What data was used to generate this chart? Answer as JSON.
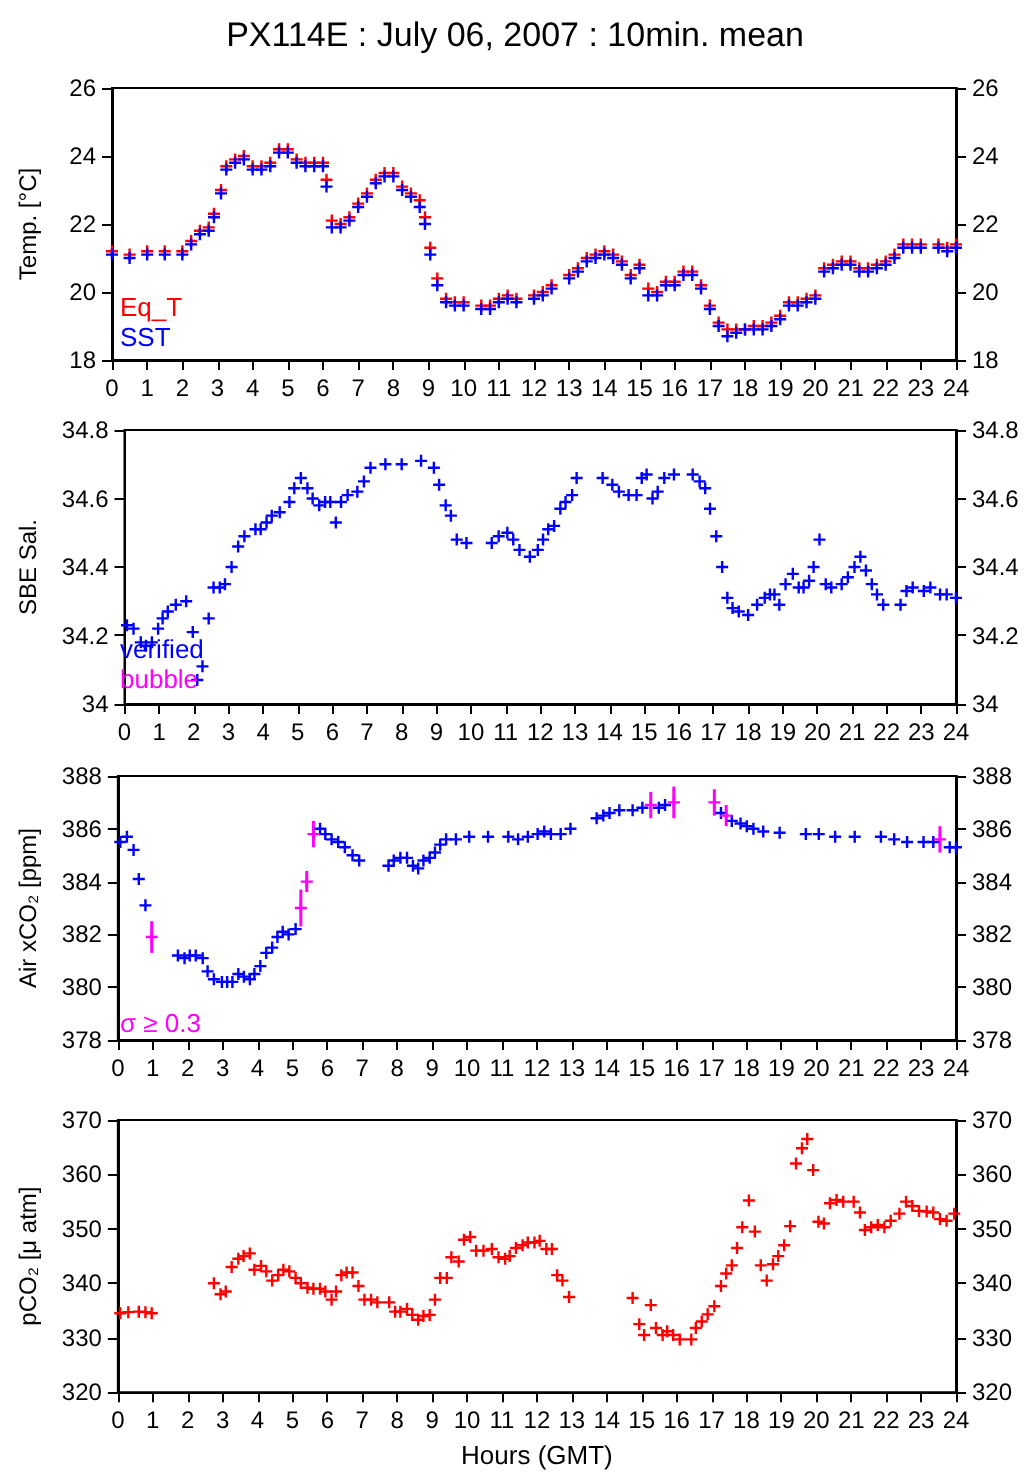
{
  "chart_data": [
    {
      "type": "scatter",
      "title": "PX114E : July 06, 2007 : 10min. mean",
      "ylabel": "Temp. [°C]",
      "xlim": [
        0,
        24
      ],
      "xticks": [
        0,
        1,
        2,
        3,
        4,
        5,
        6,
        7,
        8,
        9,
        10,
        11,
        12,
        13,
        14,
        15,
        16,
        17,
        18,
        19,
        20,
        21,
        22,
        23,
        24
      ],
      "ylim": [
        18,
        26
      ],
      "yticks": [
        18,
        20,
        22,
        24,
        26
      ],
      "y2lim": [
        18,
        26
      ],
      "y2ticks": [
        18,
        20,
        22,
        24,
        26
      ],
      "marker": "cross",
      "legend": "bottom left",
      "series": [
        {
          "name": "Eq_T",
          "color": "#ff0000",
          "x": [
            0,
            0.5,
            1,
            1.5,
            2,
            2.25,
            2.5,
            2.75,
            2.9,
            3.1,
            3.25,
            3.5,
            3.75,
            4,
            4.25,
            4.5,
            4.75,
            5,
            5.25,
            5.5,
            5.75,
            6,
            6.1,
            6.25,
            6.5,
            6.75,
            7,
            7.25,
            7.5,
            7.75,
            8,
            8.25,
            8.5,
            8.75,
            8.9,
            9.05,
            9.25,
            9.5,
            9.75,
            10,
            10.5,
            10.75,
            11,
            11.25,
            11.5,
            12,
            12.25,
            12.5,
            13,
            13.25,
            13.5,
            13.75,
            14,
            14.25,
            14.5,
            14.75,
            15,
            15.25,
            15.5,
            15.75,
            16,
            16.25,
            16.5,
            16.75,
            17,
            17.25,
            17.5,
            17.75,
            18,
            18.25,
            18.5,
            18.75,
            19,
            19.25,
            19.5,
            19.75,
            20,
            20.25,
            20.5,
            20.75,
            21,
            21.25,
            21.5,
            21.75,
            22,
            22.25,
            22.5,
            22.75,
            23,
            23.5,
            23.75,
            24
          ],
          "values": [
            21.2,
            21.1,
            21.2,
            21.2,
            21.2,
            21.5,
            21.8,
            21.9,
            22.3,
            23,
            23.7,
            23.9,
            24,
            23.7,
            23.7,
            23.8,
            24.2,
            24.2,
            23.9,
            23.8,
            23.8,
            23.8,
            23.3,
            22.1,
            22,
            22.2,
            22.6,
            22.9,
            23.3,
            23.5,
            23.5,
            23.1,
            22.9,
            22.7,
            22.2,
            21.3,
            20.4,
            19.8,
            19.7,
            19.7,
            19.6,
            19.6,
            19.8,
            19.9,
            19.8,
            19.9,
            20,
            20.2,
            20.5,
            20.7,
            21,
            21.1,
            21.2,
            21.1,
            20.9,
            20.5,
            20.8,
            20.1,
            20,
            20.3,
            20.3,
            20.6,
            20.6,
            20.2,
            19.6,
            19.1,
            18.9,
            18.9,
            18.9,
            19,
            19,
            19.1,
            19.3,
            19.7,
            19.7,
            19.8,
            19.9,
            20.7,
            20.8,
            20.9,
            20.9,
            20.7,
            20.7,
            20.8,
            20.9,
            21.1,
            21.4,
            21.4,
            21.4,
            21.4,
            21.3,
            21.4
          ]
        },
        {
          "name": "SST",
          "color": "#0000ff",
          "x": [
            0,
            0.5,
            1,
            1.5,
            2,
            2.25,
            2.5,
            2.75,
            2.9,
            3.1,
            3.25,
            3.5,
            3.75,
            4,
            4.25,
            4.5,
            4.75,
            5,
            5.25,
            5.5,
            5.75,
            6,
            6.1,
            6.25,
            6.5,
            6.75,
            7,
            7.25,
            7.5,
            7.75,
            8,
            8.25,
            8.5,
            8.75,
            8.9,
            9.05,
            9.25,
            9.5,
            9.75,
            10,
            10.5,
            10.75,
            11,
            11.25,
            11.5,
            12,
            12.25,
            12.5,
            13,
            13.25,
            13.5,
            13.75,
            14,
            14.25,
            14.5,
            14.75,
            15,
            15.25,
            15.5,
            15.75,
            16,
            16.25,
            16.5,
            16.75,
            17,
            17.25,
            17.5,
            17.75,
            18,
            18.25,
            18.5,
            18.75,
            19,
            19.25,
            19.5,
            19.75,
            20,
            20.25,
            20.5,
            20.75,
            21,
            21.25,
            21.5,
            21.75,
            22,
            22.25,
            22.5,
            22.75,
            23,
            23.5,
            23.75,
            24
          ],
          "values": [
            21.1,
            21,
            21.1,
            21.1,
            21.1,
            21.4,
            21.7,
            21.8,
            22.2,
            22.9,
            23.6,
            23.8,
            23.9,
            23.6,
            23.6,
            23.7,
            24.1,
            24.1,
            23.8,
            23.7,
            23.7,
            23.7,
            23.1,
            21.9,
            21.9,
            22.1,
            22.5,
            22.8,
            23.2,
            23.4,
            23.4,
            23,
            22.8,
            22.5,
            22,
            21.1,
            20.2,
            19.7,
            19.6,
            19.6,
            19.5,
            19.5,
            19.7,
            19.8,
            19.7,
            19.8,
            19.9,
            20.1,
            20.4,
            20.6,
            20.9,
            21,
            21.1,
            21,
            20.8,
            20.4,
            20.7,
            19.9,
            19.9,
            20.2,
            20.2,
            20.5,
            20.5,
            20.1,
            19.5,
            19,
            18.7,
            18.8,
            18.9,
            18.9,
            18.9,
            19,
            19.2,
            19.6,
            19.6,
            19.7,
            19.8,
            20.6,
            20.7,
            20.8,
            20.8,
            20.6,
            20.6,
            20.7,
            20.8,
            21,
            21.3,
            21.3,
            21.3,
            21.3,
            21.2,
            21.3
          ]
        }
      ]
    },
    {
      "type": "scatter",
      "ylabel": "SBE Sal.",
      "xlim": [
        0,
        24
      ],
      "xticks": [
        0,
        1,
        2,
        3,
        4,
        5,
        6,
        7,
        8,
        9,
        10,
        11,
        12,
        13,
        14,
        15,
        16,
        17,
        18,
        19,
        20,
        21,
        22,
        23,
        24
      ],
      "ylim": [
        34,
        34.8
      ],
      "yticks": [
        34,
        34.2,
        34.4,
        34.6,
        34.8
      ],
      "y2lim": [
        34,
        34.8
      ],
      "y2ticks": [
        34,
        34.2,
        34.4,
        34.6,
        34.8
      ],
      "marker": "cross",
      "legend": "bottom left",
      "series": [
        {
          "name": "verified",
          "color": "#0000ff",
          "x": [
            0.07,
            0.26,
            0.47,
            0.62,
            0.79,
            0.97,
            1.1,
            1.25,
            1.48,
            1.78,
            1.97,
            2.1,
            2.25,
            2.43,
            2.57,
            2.75,
            2.9,
            3.09,
            3.28,
            3.46,
            3.78,
            3.93,
            4.1,
            4.25,
            4.48,
            4.76,
            4.9,
            5.09,
            5.28,
            5.43,
            5.62,
            5.79,
            5.94,
            6.1,
            6.25,
            6.44,
            6.72,
            6.91,
            7.1,
            7.53,
            8,
            8.56,
            8.93,
            9.08,
            9.27,
            9.42,
            9.59,
            9.87,
            10.6,
            10.8,
            11.05,
            11.22,
            11.4,
            11.7,
            11.93,
            12.08,
            12.23,
            12.4,
            12.58,
            12.73,
            12.92,
            13.05,
            13.8,
            14.08,
            14.27,
            14.55,
            14.78,
            14.93,
            15.07,
            15.24,
            15.39,
            15.58,
            15.86,
            16.4,
            16.6,
            16.76,
            16.9,
            17.08,
            17.25,
            17.4,
            17.55,
            17.73,
            18,
            18.26,
            18.48,
            18.63,
            18.76,
            18.9,
            19.08,
            19.29,
            19.46,
            19.6,
            19.76,
            19.89,
            20.06,
            20.24,
            20.4,
            20.7,
            20.88,
            21.07,
            21.24,
            21.4,
            21.57,
            21.72,
            21.9,
            22.4,
            22.57,
            22.75,
            23.07,
            23.26,
            23.54,
            23.73,
            24
          ],
          "values": [
            34.23,
            34.22,
            34.18,
            34.17,
            34.18,
            34.22,
            34.25,
            34.27,
            34.29,
            34.3,
            34.21,
            34.07,
            34.11,
            34.25,
            34.34,
            34.34,
            34.35,
            34.4,
            34.46,
            34.49,
            34.51,
            34.51,
            34.53,
            34.55,
            34.56,
            34.59,
            34.63,
            34.66,
            34.63,
            34.6,
            34.58,
            34.59,
            34.59,
            34.53,
            34.59,
            34.61,
            34.62,
            34.65,
            34.69,
            34.7,
            34.7,
            34.71,
            34.69,
            34.64,
            34.58,
            34.55,
            34.48,
            34.47,
            34.47,
            34.49,
            34.5,
            34.48,
            34.45,
            34.43,
            34.45,
            34.48,
            34.51,
            34.52,
            34.57,
            34.59,
            34.61,
            34.66,
            34.66,
            34.64,
            34.62,
            34.61,
            34.61,
            34.66,
            34.67,
            34.6,
            34.62,
            34.66,
            34.67,
            34.67,
            34.65,
            34.63,
            34.57,
            34.49,
            34.4,
            34.31,
            34.28,
            34.27,
            34.26,
            34.29,
            34.31,
            34.32,
            34.32,
            34.29,
            34.35,
            34.38,
            34.34,
            34.34,
            34.36,
            34.4,
            34.48,
            34.35,
            34.34,
            34.35,
            34.37,
            34.4,
            34.43,
            34.39,
            34.35,
            34.32,
            34.29,
            34.29,
            34.33,
            34.34,
            34.33,
            34.34,
            34.32,
            34.32,
            34.31
          ]
        },
        {
          "name": "bubble",
          "color": "#ff00ff"
        }
      ]
    },
    {
      "type": "scatter",
      "ylabel": "Air xCO₂ [ppm]",
      "xlim": [
        0,
        24
      ],
      "xticks": [
        0,
        1,
        2,
        3,
        4,
        5,
        6,
        7,
        8,
        9,
        10,
        11,
        12,
        13,
        14,
        15,
        16,
        17,
        18,
        19,
        20,
        21,
        22,
        23,
        24
      ],
      "ylim": [
        378,
        388
      ],
      "yticks": [
        378,
        380,
        382,
        384,
        386,
        388
      ],
      "y2lim": [
        378,
        388
      ],
      "y2ticks": [
        378,
        380,
        382,
        384,
        386,
        388
      ],
      "marker": "cross",
      "legend": "bottom left",
      "series": [
        {
          "color": "#0000ff",
          "x": [
            0.07,
            0.26,
            0.45,
            0.6,
            0.79,
            1.72,
            1.91,
            2.06,
            2.23,
            2.43,
            2.57,
            2.75,
            2.98,
            3.13,
            3.28,
            3.45,
            3.61,
            3.78,
            3.91,
            4.08,
            4.25,
            4.42,
            4.57,
            4.72,
            4.89,
            5.09,
            5.79,
            5.94,
            6.12,
            6.31,
            6.5,
            6.72,
            6.91,
            7.75,
            7.9,
            8.09,
            8.28,
            8.45,
            8.6,
            8.75,
            8.93,
            9.08,
            9.23,
            9.4,
            9.68,
            10.06,
            10.6,
            11.18,
            11.46,
            11.74,
            12.02,
            12.21,
            12.4,
            12.68,
            12.96,
            13.71,
            13.9,
            14.08,
            14.36,
            14.74,
            15.02,
            15.49,
            15.67,
            17.27,
            17.58,
            17.83,
            18.01,
            18.2,
            18.48,
            18.95,
            19.7,
            20.07,
            20.54,
            21.1,
            21.85,
            22.23,
            22.6,
            23.07,
            23.35,
            23.82,
            24
          ],
          "values": [
            385.5,
            385.7,
            385.2,
            384.1,
            383.1,
            381.2,
            381.1,
            381.2,
            381.2,
            381.1,
            380.6,
            380.3,
            380.2,
            380.2,
            380.2,
            380.5,
            380.4,
            380.3,
            380.5,
            380.8,
            381.3,
            381.5,
            381.9,
            382.1,
            382,
            382.2,
            386,
            385.8,
            385.6,
            385.5,
            385.3,
            385,
            384.8,
            384.6,
            384.8,
            384.9,
            384.9,
            384.6,
            384.5,
            384.8,
            384.9,
            385.1,
            385.4,
            385.6,
            385.6,
            385.7,
            385.7,
            385.7,
            385.6,
            385.7,
            385.8,
            385.9,
            385.8,
            385.8,
            386,
            386.4,
            386.5,
            386.6,
            386.7,
            386.7,
            386.8,
            386.8,
            386.9,
            386.6,
            386.3,
            386.2,
            386.1,
            386,
            385.9,
            385.85,
            385.8,
            385.8,
            385.7,
            385.7,
            385.7,
            385.6,
            385.5,
            385.5,
            385.5,
            385.3,
            385.3
          ]
        },
        {
          "name": "σ ≥ 0.3",
          "color": "#ff00ff",
          "x": [
            0.97,
            5.24,
            5.41,
            5.6,
            15.26,
            15.92,
            17.08,
            17.42,
            23.54
          ],
          "values": [
            381.9,
            383,
            384,
            385.8,
            386.9,
            387,
            387,
            386.5,
            385.6
          ],
          "errors": [
            0.6,
            0.7,
            0.4,
            0.5,
            0.5,
            0.6,
            0.5,
            0.4,
            0.5
          ]
        }
      ]
    },
    {
      "type": "scatter",
      "ylabel": "pCO₂ [μ atm]",
      "xlabel": "Hours (GMT)",
      "xlim": [
        0,
        24
      ],
      "xticks": [
        0,
        1,
        2,
        3,
        4,
        5,
        6,
        7,
        8,
        9,
        10,
        11,
        12,
        13,
        14,
        15,
        16,
        17,
        18,
        19,
        20,
        21,
        22,
        23,
        24
      ],
      "ylim": [
        320,
        370
      ],
      "yticks": [
        320,
        330,
        340,
        350,
        360,
        370
      ],
      "y2lim": [
        320,
        370
      ],
      "y2ticks": [
        320,
        330,
        340,
        350,
        360,
        370
      ],
      "marker": "cross",
      "series": [
        {
          "color": "#ff0000",
          "x": [
            0.07,
            0.3,
            0.6,
            0.79,
            0.97,
            2.75,
            2.94,
            3.09,
            3.26,
            3.45,
            3.6,
            3.78,
            3.91,
            4.1,
            4.25,
            4.42,
            4.59,
            4.74,
            4.91,
            5.09,
            5.24,
            5.43,
            5.6,
            5.79,
            5.94,
            6.12,
            6.25,
            6.4,
            6.55,
            6.72,
            6.89,
            7.06,
            7.25,
            7.43,
            7.77,
            7.94,
            8.09,
            8.28,
            8.43,
            8.6,
            8.75,
            8.93,
            9.08,
            9.23,
            9.42,
            9.55,
            9.76,
            9.91,
            10.09,
            10.26,
            10.47,
            10.71,
            10.9,
            11.09,
            11.22,
            11.4,
            11.59,
            11.74,
            11.93,
            12.08,
            12.27,
            12.43,
            12.58,
            12.73,
            12.92,
            14.74,
            14.93,
            15.07,
            15.26,
            15.41,
            15.6,
            15.73,
            15.9,
            16.09,
            16.42,
            16.55,
            16.72,
            16.89,
            17.08,
            17.27,
            17.42,
            17.58,
            17.73,
            17.88,
            18.07,
            18.24,
            18.41,
            18.58,
            18.76,
            18.91,
            19.08,
            19.25,
            19.42,
            19.59,
            19.74,
            19.91,
            20.06,
            20.22,
            20.39,
            20.58,
            20.77,
            21.07,
            21.25,
            21.39,
            21.57,
            21.76,
            21.95,
            22.13,
            22.38,
            22.57,
            22.75,
            22.94,
            23.16,
            23.35,
            23.54,
            23.73,
            23.95
          ],
          "values": [
            334.5,
            334.7,
            334.8,
            334.7,
            334.5,
            340,
            338,
            338.5,
            343,
            344.5,
            345,
            345.5,
            342.5,
            343.2,
            342.2,
            340.5,
            341.5,
            342.5,
            342.2,
            341,
            340,
            339.2,
            339,
            339,
            338.5,
            337,
            338.5,
            341.5,
            342,
            342,
            339.5,
            337,
            337,
            336.5,
            336.5,
            334.8,
            334.8,
            335.3,
            334.2,
            333.3,
            334,
            334.2,
            337,
            341,
            341,
            344.8,
            344,
            348,
            348.5,
            346,
            346,
            346.3,
            344.8,
            344.5,
            345,
            346.5,
            347,
            347.5,
            347.5,
            347.8,
            346.3,
            346.3,
            341.5,
            340.5,
            337.5,
            337.3,
            332.5,
            330.5,
            336,
            331.8,
            330.5,
            331.2,
            330.5,
            329.7,
            329.7,
            331.8,
            333,
            334.3,
            335.8,
            339.5,
            341.8,
            343.3,
            346.5,
            350.3,
            355.2,
            349.5,
            343.3,
            340.5,
            343.5,
            345,
            347,
            350.5,
            362,
            364.8,
            366.5,
            360.8,
            351.3,
            351,
            354.7,
            355.3,
            355,
            355,
            353,
            349.8,
            350.3,
            350.7,
            350.3,
            351.5,
            352.8,
            355,
            354.2,
            353.3,
            353.2,
            353,
            351.8,
            351.5,
            352.8
          ]
        }
      ]
    }
  ]
}
